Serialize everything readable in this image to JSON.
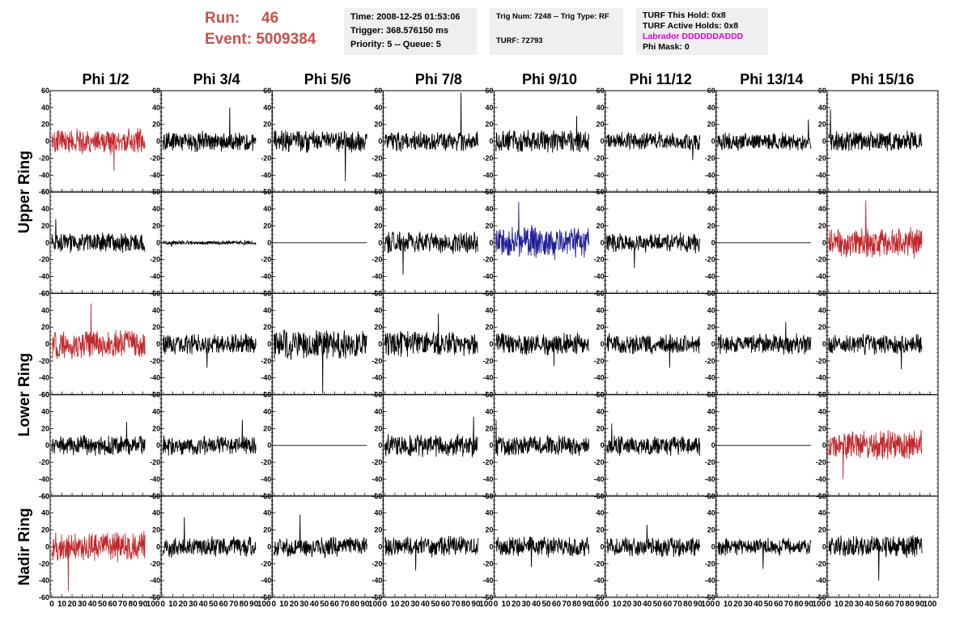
{
  "header": {
    "run_label": "Run:",
    "run_value": "46",
    "event_label": "Event:",
    "event_value": "5009384",
    "time": "Time: 2008-12-25 01:53:06",
    "trigger": "Trigger: 368.576150 ms",
    "priority": "Priority: 5 -- Queue: 5",
    "trig_num": "Trig Num: 7248 -- Trig Type: RF",
    "turf": "TURF: 72793",
    "turf_this_hold": "TURF This Hold: 0x8",
    "turf_active_holds": "TURF Active Holds: 0x8",
    "labrador": "Labrador DDDDDDADDD",
    "phi_mask": "Phi Mask: 0"
  },
  "colors": {
    "header_red": "#c8504c",
    "trace_black": "#000000",
    "trace_red": "#c0282c",
    "trace_blue": "#1e1e96",
    "labrador_magenta": "#e000e0",
    "info_bg": "#efefef"
  },
  "chart_data": {
    "type": "line",
    "columns": [
      "Phi 1/2",
      "Phi 3/4",
      "Phi 5/6",
      "Phi 7/8",
      "Phi 9/10",
      "Phi 11/12",
      "Phi 13/14",
      "Phi 15/16"
    ],
    "rows": [
      "Upper Ring",
      "Lower Ring",
      "Nadir Ring"
    ],
    "xlim": [
      0,
      100
    ],
    "ylim": [
      -60,
      60
    ],
    "x_ticks": [
      0,
      10,
      20,
      30,
      40,
      50,
      60,
      70,
      80,
      90,
      100
    ],
    "y_ticks": [
      -60,
      -40,
      -20,
      0,
      20,
      40,
      60
    ],
    "x_tick_labels": [
      "0",
      "10",
      "20",
      "30",
      "40",
      "50",
      "60",
      "70",
      "80",
      "90",
      "100"
    ],
    "y_tick_labels": [
      "-60",
      "-40",
      "-20",
      "0",
      "20",
      "40",
      "60"
    ],
    "panel_rows": [
      [
        {
          "color": "red",
          "amplitude": 13,
          "spikes": 35
        },
        {
          "color": "black",
          "amplitude": 10,
          "spikes": 40
        },
        {
          "color": "black",
          "amplitude": 11,
          "spikes": 47
        },
        {
          "color": "black",
          "amplitude": 10,
          "spikes": 58
        },
        {
          "color": "black",
          "amplitude": 11,
          "spikes": 30
        },
        {
          "color": "black",
          "amplitude": 9,
          "spikes": 22
        },
        {
          "color": "black",
          "amplitude": 9,
          "spikes": 26
        },
        {
          "color": "black",
          "amplitude": 10,
          "spikes": 38
        }
      ],
      [
        {
          "color": "black",
          "amplitude": 10,
          "spikes": 28
        },
        {
          "color": "black",
          "amplitude": 2,
          "spikes": 5
        },
        {
          "color": "black",
          "amplitude": 0,
          "spikes": 0
        },
        {
          "color": "black",
          "amplitude": 11,
          "spikes": 38
        },
        {
          "color": "blue",
          "amplitude": 16,
          "spikes": 48
        },
        {
          "color": "black",
          "amplitude": 10,
          "spikes": 30
        },
        {
          "color": "black",
          "amplitude": 0,
          "spikes": 0
        },
        {
          "color": "red",
          "amplitude": 15,
          "spikes": 50
        }
      ],
      [
        {
          "color": "red",
          "amplitude": 14,
          "spikes": 48
        },
        {
          "color": "black",
          "amplitude": 10,
          "spikes": 28
        },
        {
          "color": "black",
          "amplitude": 15,
          "spikes": 58
        },
        {
          "color": "black",
          "amplitude": 13,
          "spikes": 36
        },
        {
          "color": "black",
          "amplitude": 11,
          "spikes": 26
        },
        {
          "color": "black",
          "amplitude": 10,
          "spikes": 28
        },
        {
          "color": "black",
          "amplitude": 10,
          "spikes": 26
        },
        {
          "color": "black",
          "amplitude": 10,
          "spikes": 30
        }
      ],
      [
        {
          "color": "black",
          "amplitude": 10,
          "spikes": 28
        },
        {
          "color": "black",
          "amplitude": 10,
          "spikes": 30
        },
        {
          "color": "black",
          "amplitude": 0,
          "spikes": 0
        },
        {
          "color": "black",
          "amplitude": 11,
          "spikes": 34
        },
        {
          "color": "black",
          "amplitude": 10,
          "spikes": 30
        },
        {
          "color": "black",
          "amplitude": 10,
          "spikes": 26
        },
        {
          "color": "black",
          "amplitude": 0,
          "spikes": 0
        },
        {
          "color": "red",
          "amplitude": 15,
          "spikes": 40
        }
      ],
      [
        {
          "color": "red",
          "amplitude": 15,
          "spikes": 52
        },
        {
          "color": "black",
          "amplitude": 10,
          "spikes": 35
        },
        {
          "color": "black",
          "amplitude": 10,
          "spikes": 38
        },
        {
          "color": "black",
          "amplitude": 10,
          "spikes": 28
        },
        {
          "color": "black",
          "amplitude": 10,
          "spikes": 24
        },
        {
          "color": "black",
          "amplitude": 10,
          "spikes": 26
        },
        {
          "color": "black",
          "amplitude": 9,
          "spikes": 26
        },
        {
          "color": "black",
          "amplitude": 11,
          "spikes": 40
        }
      ]
    ]
  }
}
